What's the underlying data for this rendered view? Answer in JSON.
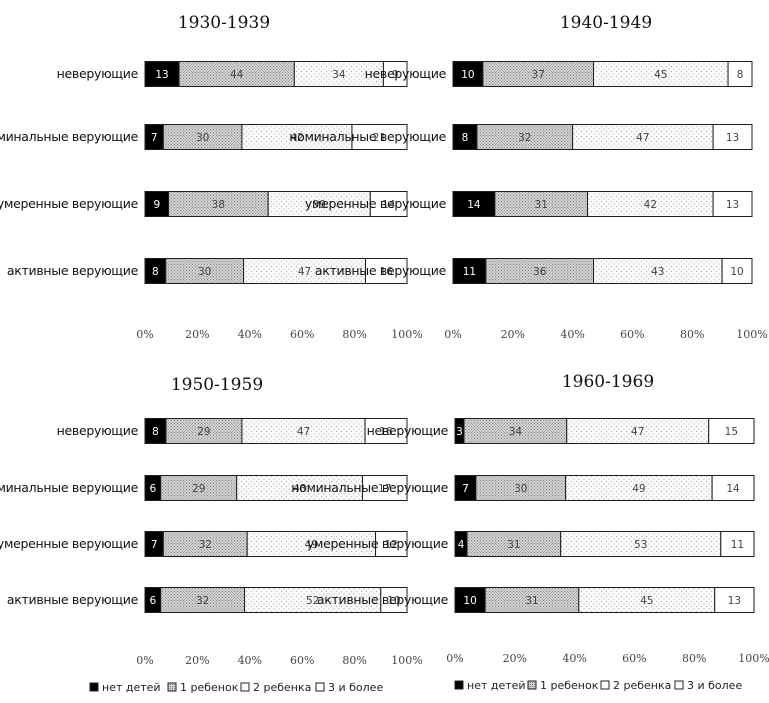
{
  "chart_data": [
    {
      "type": "bar",
      "orientation": "horizontal",
      "stacked": "percent",
      "title": "1930-1939",
      "categories": [
        "неверующие",
        "номинальные верующие",
        "умеренные верующие",
        "активные верующие"
      ],
      "series": [
        {
          "name": "нет детей",
          "values": [
            13,
            7,
            9,
            8
          ]
        },
        {
          "name": "1 ребенок",
          "values": [
            44,
            30,
            38,
            30
          ]
        },
        {
          "name": "2 ребенка",
          "values": [
            34,
            42,
            39,
            47
          ]
        },
        {
          "name": "3 и более",
          "values": [
            9,
            21,
            14,
            16
          ]
        }
      ],
      "xlim": [
        0,
        100
      ],
      "xticks": [
        "0%",
        "20%",
        "40%",
        "60%",
        "80%",
        "100%"
      ]
    },
    {
      "type": "bar",
      "orientation": "horizontal",
      "stacked": "percent",
      "title": "1940-1949",
      "categories": [
        "неверующие",
        "номинальные верующие",
        "умеренные верующие",
        "активные верующие"
      ],
      "series": [
        {
          "name": "нет детей",
          "values": [
            10,
            8,
            14,
            11
          ]
        },
        {
          "name": "1 ребенок",
          "values": [
            37,
            32,
            31,
            36
          ]
        },
        {
          "name": "2 ребенка",
          "values": [
            45,
            47,
            42,
            43
          ]
        },
        {
          "name": "3 и более",
          "values": [
            8,
            13,
            13,
            10
          ]
        }
      ],
      "xlim": [
        0,
        100
      ],
      "xticks": [
        "0%",
        "20%",
        "40%",
        "60%",
        "80%",
        "100%"
      ]
    },
    {
      "type": "bar",
      "orientation": "horizontal",
      "stacked": "percent",
      "title": "1950-1959",
      "categories": [
        "неверующие",
        "номинальные верующие",
        "умеренные верующие",
        "активные верующие"
      ],
      "series": [
        {
          "name": "нет детей",
          "values": [
            8,
            6,
            7,
            6
          ]
        },
        {
          "name": "1 ребенок",
          "values": [
            29,
            29,
            32,
            32
          ]
        },
        {
          "name": "2 ребенка",
          "values": [
            47,
            48,
            49,
            52
          ]
        },
        {
          "name": "3 и более",
          "values": [
            16,
            17,
            12,
            10
          ]
        }
      ],
      "xlim": [
        0,
        100
      ],
      "xticks": [
        "0%",
        "20%",
        "40%",
        "60%",
        "80%",
        "100%"
      ]
    },
    {
      "type": "bar",
      "orientation": "horizontal",
      "stacked": "percent",
      "title": "1960-1969",
      "categories": [
        "неверующие",
        "номинальные верующие",
        "умеренные верующие",
        "активные верующие"
      ],
      "series": [
        {
          "name": "нет детей",
          "values": [
            3,
            7,
            4,
            10
          ]
        },
        {
          "name": "1 ребенок",
          "values": [
            34,
            30,
            31,
            31
          ]
        },
        {
          "name": "2 ребенка",
          "values": [
            47,
            49,
            53,
            45
          ]
        },
        {
          "name": "3 и более",
          "values": [
            15,
            14,
            11,
            13
          ]
        }
      ],
      "xlim": [
        0,
        100
      ],
      "xticks": [
        "0%",
        "20%",
        "40%",
        "60%",
        "80%",
        "100%"
      ]
    }
  ],
  "legend": {
    "items": [
      {
        "label": "нет детей",
        "style": "solid-black"
      },
      {
        "label": "1 ребенок",
        "style": "dense-gray"
      },
      {
        "label": "2 ребенка",
        "style": "dotted"
      },
      {
        "label": "3 и более",
        "style": "white"
      }
    ]
  },
  "colors": {
    "none": "#000000",
    "one": "#c8c8c8",
    "two": "#f4f4f4",
    "three": "#ffffff",
    "outline": "#222222"
  }
}
